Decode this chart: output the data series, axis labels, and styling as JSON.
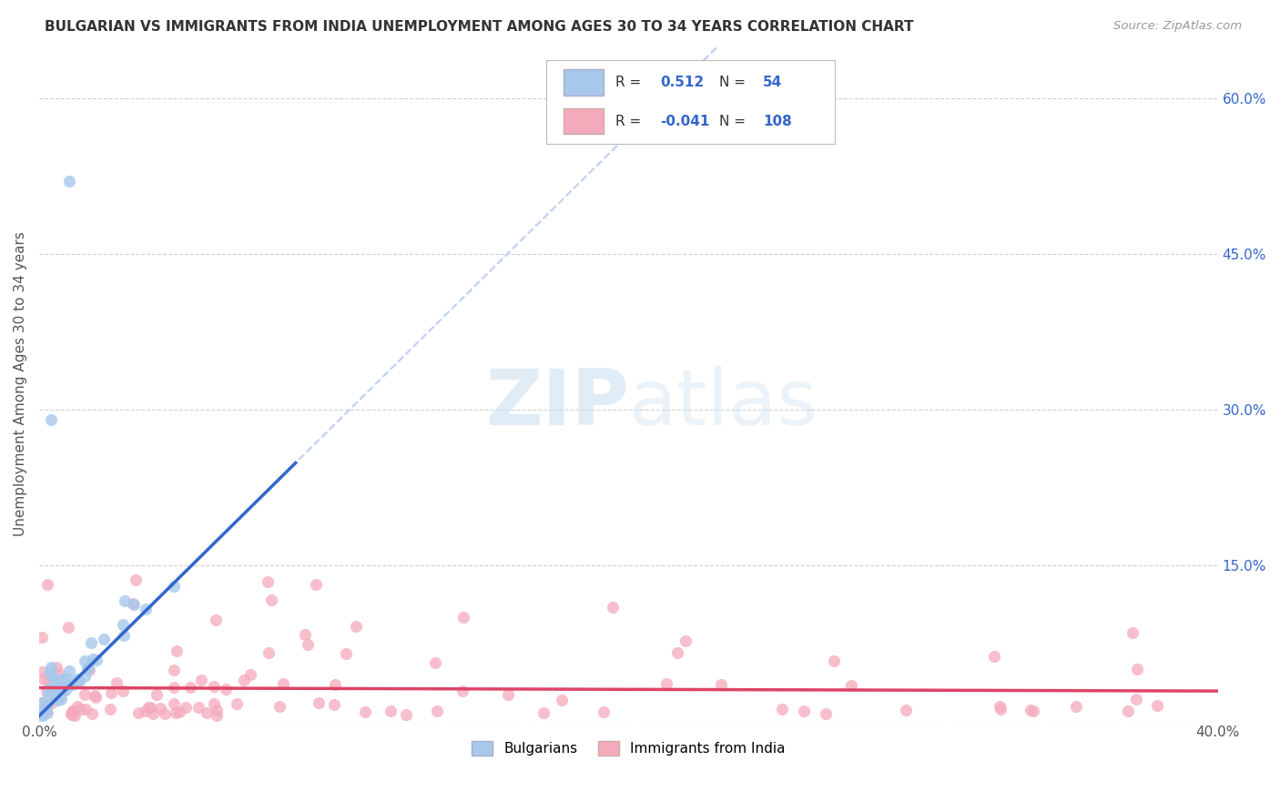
{
  "title": "BULGARIAN VS IMMIGRANTS FROM INDIA UNEMPLOYMENT AMONG AGES 30 TO 34 YEARS CORRELATION CHART",
  "source": "Source: ZipAtlas.com",
  "ylabel": "Unemployment Among Ages 30 to 34 years",
  "xlim": [
    0,
    0.4
  ],
  "ylim": [
    0,
    0.65
  ],
  "xticks": [
    0.0,
    0.05,
    0.1,
    0.15,
    0.2,
    0.25,
    0.3,
    0.35,
    0.4
  ],
  "xtick_labels": [
    "0.0%",
    "",
    "",
    "",
    "",
    "",
    "",
    "",
    "40.0%"
  ],
  "yticks": [
    0.0,
    0.15,
    0.3,
    0.45,
    0.6
  ],
  "ytick_right_labels": [
    "",
    "15.0%",
    "30.0%",
    "45.0%",
    "60.0%"
  ],
  "legend_r_blue": "0.512",
  "legend_n_blue": "54",
  "legend_r_pink": "-0.041",
  "legend_n_pink": "108",
  "watermark": "ZIPatlas",
  "blue_color": "#A8C8EC",
  "pink_color": "#F5AABB",
  "blue_line_color": "#3366CC",
  "pink_line_color": "#DD4466",
  "dashed_line_color": "#BBCCEE",
  "blue_scatter_seed": 7,
  "pink_scatter_seed": 13,
  "background_color": "#FFFFFF",
  "grid_color": "#CCCCCC",
  "title_color": "#333333",
  "source_color": "#999999",
  "axis_label_color": "#3366CC"
}
